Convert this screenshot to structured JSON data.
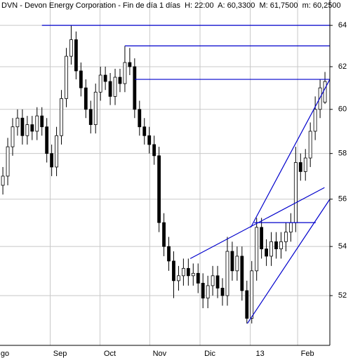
{
  "chart_data": {
    "type": "candlestick",
    "title": "DVN - Devon Energy Corporation - Fin de día 1 días  H: 22:00  A: 60,3300  M: 61,7500  m: 60,2500",
    "x": [
      0,
      1,
      2,
      3,
      4,
      5,
      6,
      7,
      8,
      9,
      10,
      11,
      12,
      13,
      14,
      15,
      16,
      17,
      18,
      19,
      20,
      21,
      22,
      23,
      24,
      25,
      26,
      27,
      28,
      29,
      30,
      31,
      32,
      33,
      34,
      35,
      36,
      37,
      38,
      39,
      40,
      41,
      42,
      43,
      44,
      45,
      46,
      47,
      48,
      49,
      50,
      51,
      52,
      53,
      54,
      55,
      56,
      57,
      58,
      59,
      60,
      61,
      62,
      63,
      64,
      65,
      66
    ],
    "open": [
      56.6,
      57.0,
      58.3,
      59.2,
      59.6,
      58.8,
      59.3,
      59.0,
      59.7,
      59.2,
      58.0,
      57.4,
      58.8,
      60.5,
      62.5,
      63.3,
      61.8,
      61.0,
      60.0,
      59.3,
      60.8,
      61.6,
      61.3,
      60.6,
      61.5,
      61.2,
      62.2,
      62.0,
      60.0,
      59.2,
      58.8,
      58.4,
      57.9,
      55.0,
      54.0,
      53.4,
      52.6,
      52.8,
      53.1,
      52.8,
      52.9,
      52.5,
      51.9,
      52.4,
      52.8,
      52.3,
      52.0,
      53.8,
      53.0,
      53.6,
      52.2,
      51.1,
      53.0,
      54.8,
      53.9,
      53.6,
      54.2,
      53.9,
      54.2,
      54.6,
      55.0,
      57.6,
      57.2,
      57.8,
      59.0,
      60.0,
      60.33
    ],
    "high": [
      57.4,
      58.7,
      59.6,
      60.0,
      60.0,
      59.7,
      59.7,
      60.1,
      60.1,
      59.6,
      58.4,
      59.2,
      60.9,
      62.9,
      64.0,
      63.7,
      62.2,
      61.4,
      60.4,
      61.2,
      62.0,
      62.0,
      61.7,
      61.9,
      61.9,
      63.0,
      62.9,
      62.4,
      60.4,
      59.6,
      59.2,
      58.8,
      58.3,
      55.4,
      54.4,
      53.8,
      53.2,
      53.5,
      53.5,
      53.3,
      53.3,
      52.9,
      52.8,
      53.2,
      53.2,
      52.7,
      54.4,
      54.2,
      54.0,
      54.0,
      52.6,
      53.4,
      55.2,
      55.2,
      54.3,
      54.6,
      54.6,
      54.6,
      55.0,
      55.4,
      58.3,
      58.0,
      58.2,
      59.4,
      60.6,
      61.4,
      61.75
    ],
    "low": [
      56.2,
      56.6,
      57.9,
      58.8,
      58.4,
      58.4,
      58.6,
      58.6,
      58.8,
      57.6,
      57.0,
      57.0,
      58.4,
      60.1,
      62.1,
      61.4,
      60.6,
      59.6,
      58.9,
      58.9,
      60.4,
      60.9,
      60.2,
      60.2,
      60.8,
      60.8,
      61.6,
      59.6,
      58.8,
      58.4,
      58.0,
      57.5,
      54.6,
      53.6,
      53.0,
      51.9,
      52.2,
      52.4,
      52.4,
      52.4,
      52.1,
      51.5,
      51.5,
      52.0,
      51.9,
      51.6,
      51.6,
      52.6,
      52.6,
      51.8,
      50.9,
      50.9,
      52.6,
      53.5,
      53.2,
      53.2,
      53.5,
      53.5,
      53.8,
      54.2,
      54.6,
      56.8,
      56.8,
      57.4,
      58.6,
      59.6,
      60.25
    ],
    "close": [
      57.0,
      58.3,
      59.2,
      59.6,
      58.8,
      59.3,
      59.0,
      59.7,
      59.2,
      58.0,
      57.4,
      58.8,
      60.5,
      62.5,
      63.3,
      61.8,
      61.0,
      60.0,
      59.3,
      60.8,
      61.6,
      61.3,
      60.6,
      61.5,
      61.2,
      62.2,
      62.0,
      60.0,
      59.2,
      58.8,
      58.4,
      57.9,
      55.0,
      54.0,
      53.4,
      52.6,
      52.8,
      53.1,
      52.8,
      52.9,
      52.5,
      51.9,
      52.4,
      52.8,
      52.3,
      52.0,
      53.8,
      53.0,
      53.6,
      52.2,
      51.1,
      53.0,
      54.8,
      53.9,
      53.6,
      54.2,
      53.9,
      54.2,
      54.6,
      55.0,
      57.6,
      57.2,
      57.8,
      59.0,
      60.0,
      61.0,
      61.3
    ],
    "up_color": "#ffffff",
    "down_color": "#000000",
    "xlim": [
      -0.3,
      67
    ],
    "xticks": [
      {
        "value": -1.6,
        "label": "go"
      },
      {
        "value": 9.7,
        "label": "Sep"
      },
      {
        "value": 19.9,
        "label": "Oct"
      },
      {
        "value": 30.1,
        "label": "Nov"
      },
      {
        "value": 40.4,
        "label": "Dic"
      },
      {
        "value": 50.7,
        "label": "13"
      },
      {
        "value": 60.4,
        "label": "Feb"
      }
    ],
    "ylim": [
      50.05,
      65.26
    ],
    "yticks": [
      52,
      54,
      56,
      58,
      60,
      62,
      64
    ],
    "log_scale": true,
    "grid": true,
    "line_color": "#0000cc",
    "lines": [
      {
        "x": [
          8,
          67
        ],
        "y": [
          64,
          64
        ]
      },
      {
        "x": [
          25,
          67
        ],
        "y": [
          63,
          63
        ]
      },
      {
        "x": [
          27,
          67
        ],
        "y": [
          61.4,
          61.4
        ]
      },
      {
        "x": [
          38.4,
          65.9
        ],
        "y": [
          53.5,
          56.5
        ]
      },
      {
        "x": [
          50.1,
          67
        ],
        "y": [
          50.9,
          56.0
        ]
      },
      {
        "x": [
          50.8,
          67
        ],
        "y": [
          54.8,
          61.4
        ]
      },
      {
        "x": [
          51.5,
          64.1
        ],
        "y": [
          55,
          55
        ]
      }
    ]
  }
}
